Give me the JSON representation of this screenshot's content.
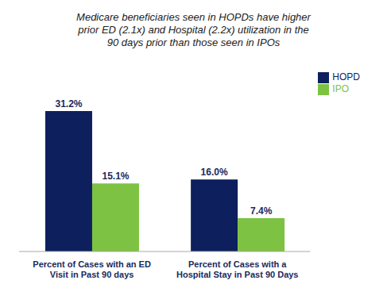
{
  "chart_data": {
    "type": "bar",
    "title": "Medicare beneficiaries seen in HOPDs have higher\nprior ED (2.1x) and Hospital (2.2x) utilization in the\n90 days prior than those seen in IPOs",
    "categories": [
      "Percent of Cases with an ED\nVisit in Past 90 days",
      "Percent of Cases with a\nHospital Stay in Past 90 Days"
    ],
    "series": [
      {
        "name": "HOPD",
        "color": "#0D1F5C",
        "values": [
          31.2,
          16.0
        ],
        "value_labels": [
          "31.2%",
          "16.0%"
        ]
      },
      {
        "name": "IPO",
        "color": "#7DC243",
        "values": [
          15.1,
          7.4
        ],
        "value_labels": [
          "15.1%",
          "7.4%"
        ]
      }
    ],
    "ylim": [
      0,
      40
    ],
    "data_labels": true,
    "legend": "upper right",
    "tick_labels": "x"
  }
}
